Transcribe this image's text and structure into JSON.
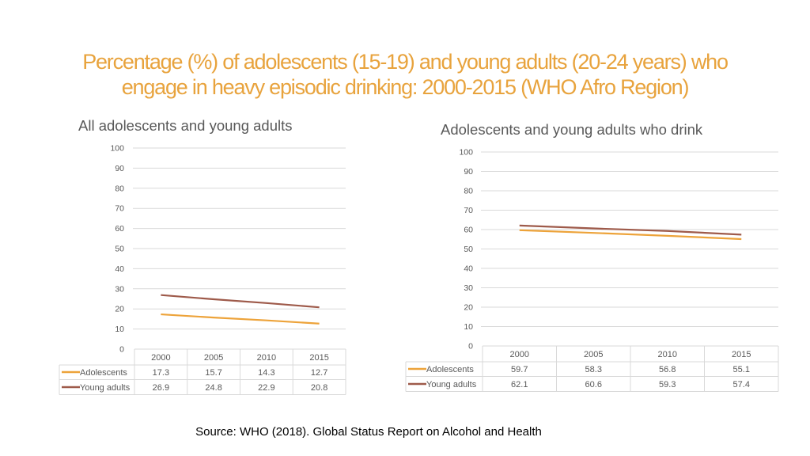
{
  "title": "Percentage (%) of adolescents (15-19) and young adults (20-24 years) who engage in heavy episodic drinking: 2000-2015 (WHO Afro Region)",
  "source": "Source: WHO (2018). Global Status Report on Alcohol and Health",
  "colors": {
    "adolescents": "#EDA33A",
    "young_adults": "#9E5A4A",
    "title": "#E8A33D",
    "grid": "#D9D9D9"
  },
  "chart_data": [
    {
      "type": "line",
      "title": "All adolescents and young adults",
      "categories": [
        "2000",
        "2005",
        "2010",
        "2015"
      ],
      "series": [
        {
          "name": "Adolescents",
          "values": [
            17.3,
            15.7,
            14.3,
            12.7
          ],
          "labels": [
            "17.3",
            "15.7",
            "14.3",
            "12.7"
          ]
        },
        {
          "name": "Young adults",
          "values": [
            26.9,
            24.8,
            22.9,
            20.8
          ],
          "labels": [
            "26.9",
            "24.8",
            "22.9",
            "20.8"
          ]
        }
      ],
      "ylim": [
        0,
        100
      ],
      "yticks": [
        "0",
        "10",
        "20",
        "30",
        "40",
        "50",
        "60",
        "70",
        "80",
        "90",
        "100"
      ],
      "grid": true,
      "data_table": true
    },
    {
      "type": "line",
      "title": "Adolescents and young adults who drink",
      "categories": [
        "2000",
        "2005",
        "2010",
        "2015"
      ],
      "series": [
        {
          "name": "Adolescents",
          "values": [
            59.7,
            58.3,
            56.8,
            55.1
          ],
          "labels": [
            "59.7",
            "58.3",
            "56.8",
            "55.1"
          ]
        },
        {
          "name": "Young adults",
          "values": [
            62.1,
            60.6,
            59.3,
            57.4
          ],
          "labels": [
            "62.1",
            "60.6",
            "59.3",
            "57.4"
          ]
        }
      ],
      "ylim": [
        0,
        100
      ],
      "yticks": [
        "0",
        "10",
        "20",
        "30",
        "40",
        "50",
        "60",
        "70",
        "80",
        "90",
        "100"
      ],
      "grid": true,
      "data_table": true
    }
  ]
}
